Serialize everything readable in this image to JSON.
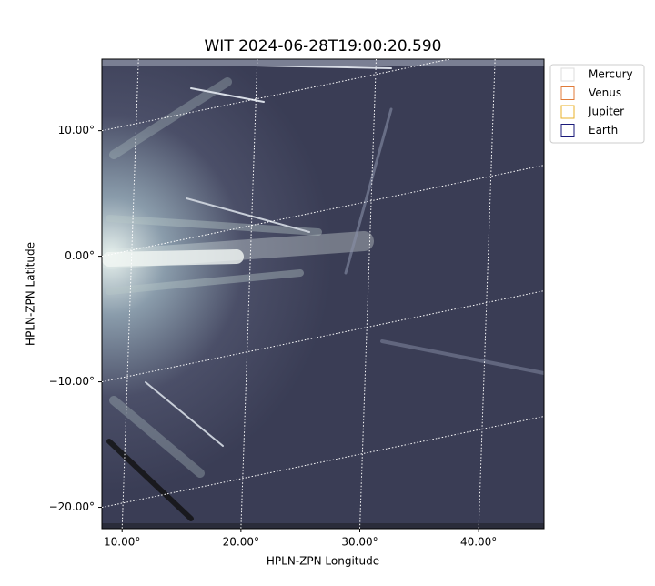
{
  "chart_data": {
    "type": "image",
    "title": "WIT 2024-06-28T19:00:20.590",
    "xlabel": "HPLN-ZPN Longitude",
    "ylabel": "HPLN-ZPN Latitude",
    "xlim": [
      8.3,
      45.5
    ],
    "ylim": [
      -21.7,
      15.7
    ],
    "xticks": [
      {
        "value": 10,
        "label": "10.00°"
      },
      {
        "value": 20,
        "label": "20.00°"
      },
      {
        "value": 30,
        "label": "30.00°"
      },
      {
        "value": 40,
        "label": "40.00°"
      }
    ],
    "yticks": [
      {
        "value": 10,
        "label": "10.00°"
      },
      {
        "value": 0,
        "label": "0.00°"
      },
      {
        "value": -10,
        "label": "−10.00°"
      },
      {
        "value": -20,
        "label": "−20.00°"
      }
    ],
    "grid": true,
    "legend_position": "upper right",
    "series": [
      {
        "name": "Mercury",
        "color": "#dddddd"
      },
      {
        "name": "Venus",
        "color": "#e07b39"
      },
      {
        "name": "Jupiter",
        "color": "#e8b02a"
      },
      {
        "name": "Earth",
        "color": "#1a1a7a"
      }
    ]
  }
}
